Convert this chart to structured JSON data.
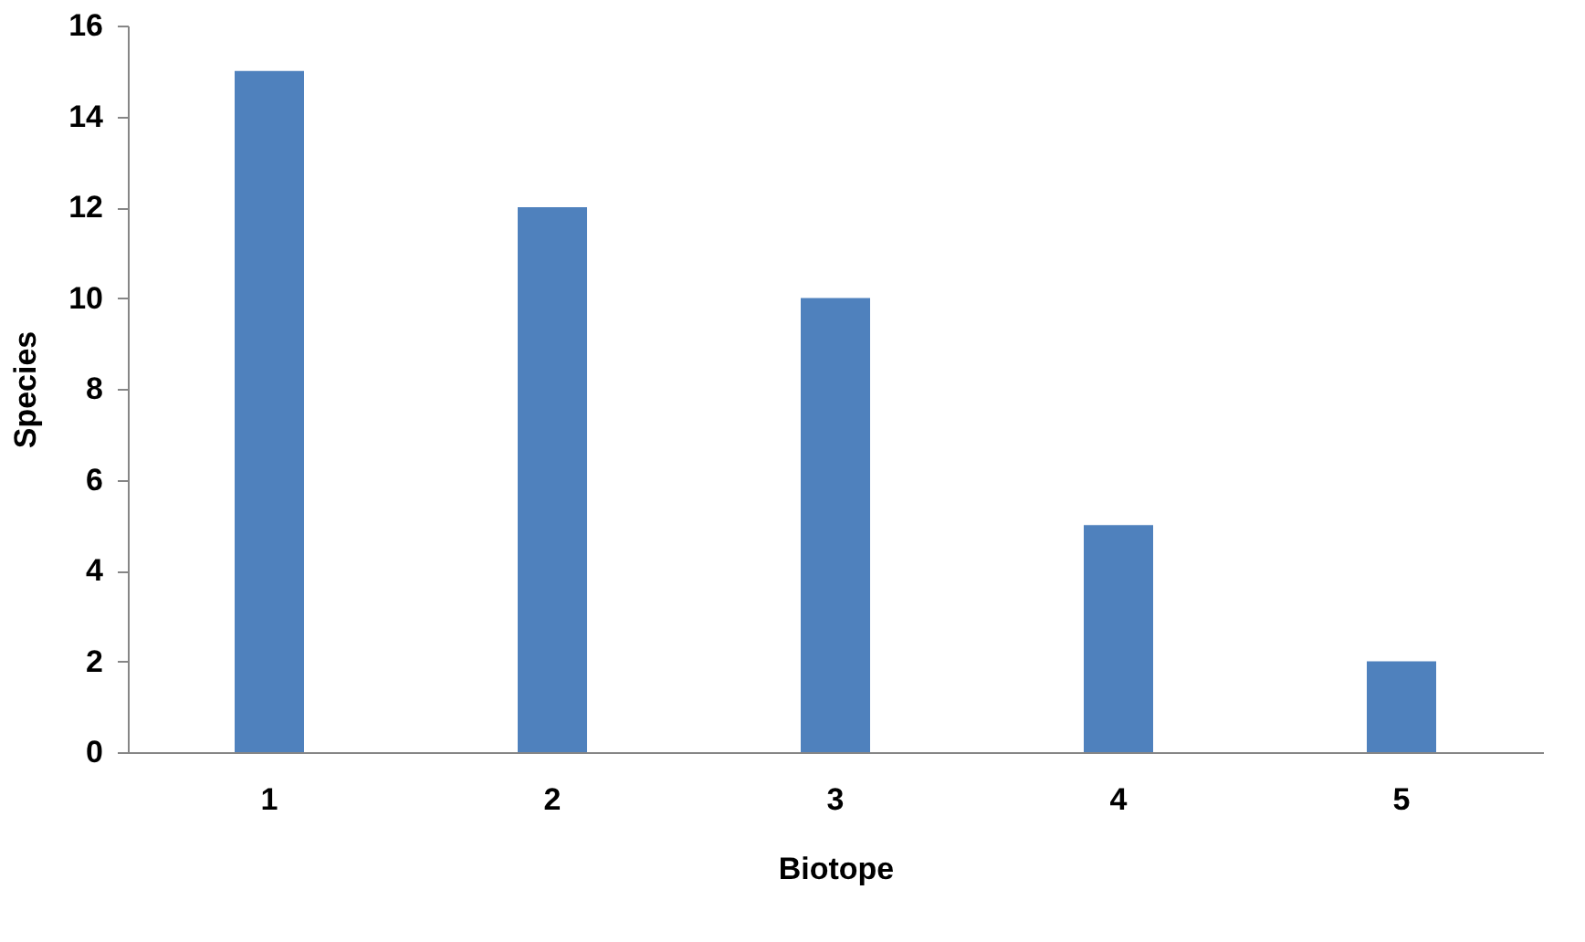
{
  "chart_data": {
    "type": "bar",
    "xlabel": "Biotope",
    "ylabel": "Species",
    "categories": [
      "1",
      "2",
      "3",
      "4",
      "5"
    ],
    "values": [
      15,
      12,
      10,
      5,
      2
    ],
    "color": "#4f81bd",
    "ylim": [
      0,
      16
    ],
    "yticks": [
      0,
      2,
      4,
      6,
      8,
      10,
      12,
      14,
      16
    ],
    "grid": false
  }
}
